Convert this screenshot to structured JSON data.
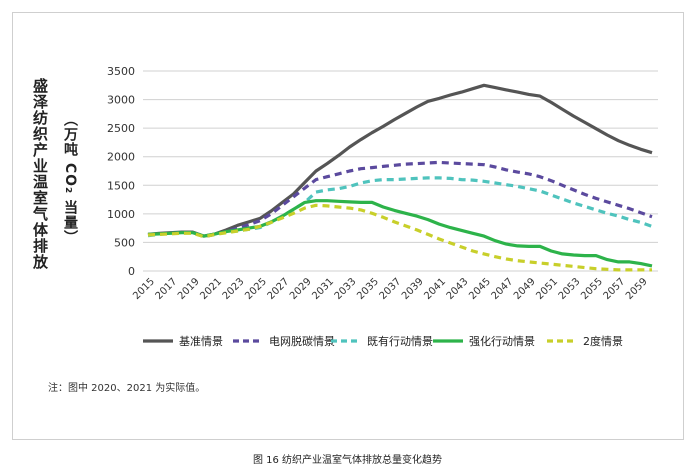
{
  "chart_data": {
    "type": "line",
    "title": "",
    "ylabel": "盛泽纺织产业温室气体排放",
    "yunit": "（万吨 CO₂ 当量）",
    "xlabel": "",
    "ylim": [
      0,
      3500
    ],
    "yticks": [
      0,
      500,
      1000,
      1500,
      2000,
      2500,
      3000,
      3500
    ],
    "grid": true,
    "legend_position": "bottom",
    "x": [
      2015,
      2016,
      2017,
      2018,
      2019,
      2020,
      2021,
      2022,
      2023,
      2024,
      2025,
      2026,
      2027,
      2028,
      2029,
      2030,
      2031,
      2032,
      2033,
      2034,
      2035,
      2036,
      2037,
      2038,
      2039,
      2040,
      2041,
      2042,
      2043,
      2044,
      2045,
      2046,
      2047,
      2048,
      2049,
      2050,
      2051,
      2052,
      2053,
      2054,
      2055,
      2056,
      2057,
      2058,
      2059,
      2060
    ],
    "xticks": [
      2015,
      2017,
      2019,
      2021,
      2023,
      2025,
      2027,
      2029,
      2031,
      2033,
      2035,
      2037,
      2039,
      2041,
      2043,
      2045,
      2047,
      2049,
      2051,
      2053,
      2055,
      2057,
      2059
    ],
    "series": [
      {
        "name": "基准情景",
        "color": "#555555",
        "dash": false,
        "values": [
          640,
          660,
          670,
          680,
          680,
          610,
          650,
          720,
          800,
          860,
          920,
          1050,
          1200,
          1350,
          1550,
          1750,
          1880,
          2020,
          2170,
          2300,
          2420,
          2530,
          2650,
          2760,
          2870,
          2970,
          3020,
          3080,
          3130,
          3190,
          3250,
          3210,
          3170,
          3130,
          3090,
          3060,
          2950,
          2830,
          2710,
          2600,
          2490,
          2380,
          2280,
          2200,
          2130,
          2070
        ]
      },
      {
        "name": "电网脱碳情景",
        "color": "#5b4a9e",
        "dash": true,
        "values": [
          630,
          650,
          660,
          670,
          670,
          600,
          640,
          690,
          750,
          810,
          880,
          1000,
          1150,
          1300,
          1450,
          1600,
          1650,
          1700,
          1750,
          1790,
          1810,
          1830,
          1850,
          1870,
          1880,
          1890,
          1900,
          1890,
          1880,
          1870,
          1860,
          1820,
          1770,
          1730,
          1700,
          1650,
          1580,
          1500,
          1420,
          1340,
          1270,
          1210,
          1150,
          1090,
          1020,
          950
        ]
      },
      {
        "name": "既有行动情景",
        "color": "#4fc3bd",
        "dash": true,
        "values": [
          620,
          640,
          660,
          670,
          670,
          610,
          640,
          680,
          700,
          730,
          760,
          850,
          960,
          1080,
          1200,
          1380,
          1420,
          1440,
          1480,
          1540,
          1580,
          1600,
          1600,
          1610,
          1620,
          1630,
          1630,
          1620,
          1600,
          1590,
          1570,
          1540,
          1510,
          1480,
          1440,
          1400,
          1330,
          1260,
          1190,
          1130,
          1070,
          1010,
          960,
          900,
          850,
          780
        ]
      },
      {
        "name": "强化行动情景",
        "color": "#2db34a",
        "dash": false,
        "values": [
          640,
          650,
          660,
          670,
          670,
          610,
          650,
          690,
          720,
          750,
          780,
          860,
          960,
          1080,
          1200,
          1230,
          1230,
          1220,
          1210,
          1200,
          1200,
          1120,
          1060,
          1010,
          960,
          900,
          820,
          760,
          710,
          660,
          610,
          530,
          470,
          440,
          430,
          430,
          350,
          300,
          280,
          270,
          270,
          200,
          160,
          160,
          130,
          90
        ]
      },
      {
        "name": "2度情景",
        "color": "#c8cf2a",
        "dash": true,
        "values": [
          630,
          640,
          650,
          660,
          660,
          600,
          640,
          670,
          700,
          730,
          780,
          850,
          930,
          1010,
          1100,
          1150,
          1140,
          1120,
          1100,
          1070,
          1010,
          940,
          860,
          790,
          720,
          640,
          560,
          490,
          420,
          350,
          300,
          250,
          210,
          180,
          160,
          140,
          120,
          100,
          80,
          60,
          40,
          30,
          20,
          20,
          20,
          20
        ]
      }
    ]
  },
  "note": "注：图中 2020、2021 为实际值。",
  "caption": "图 16 纺织产业温室气体排放总量变化趋势"
}
